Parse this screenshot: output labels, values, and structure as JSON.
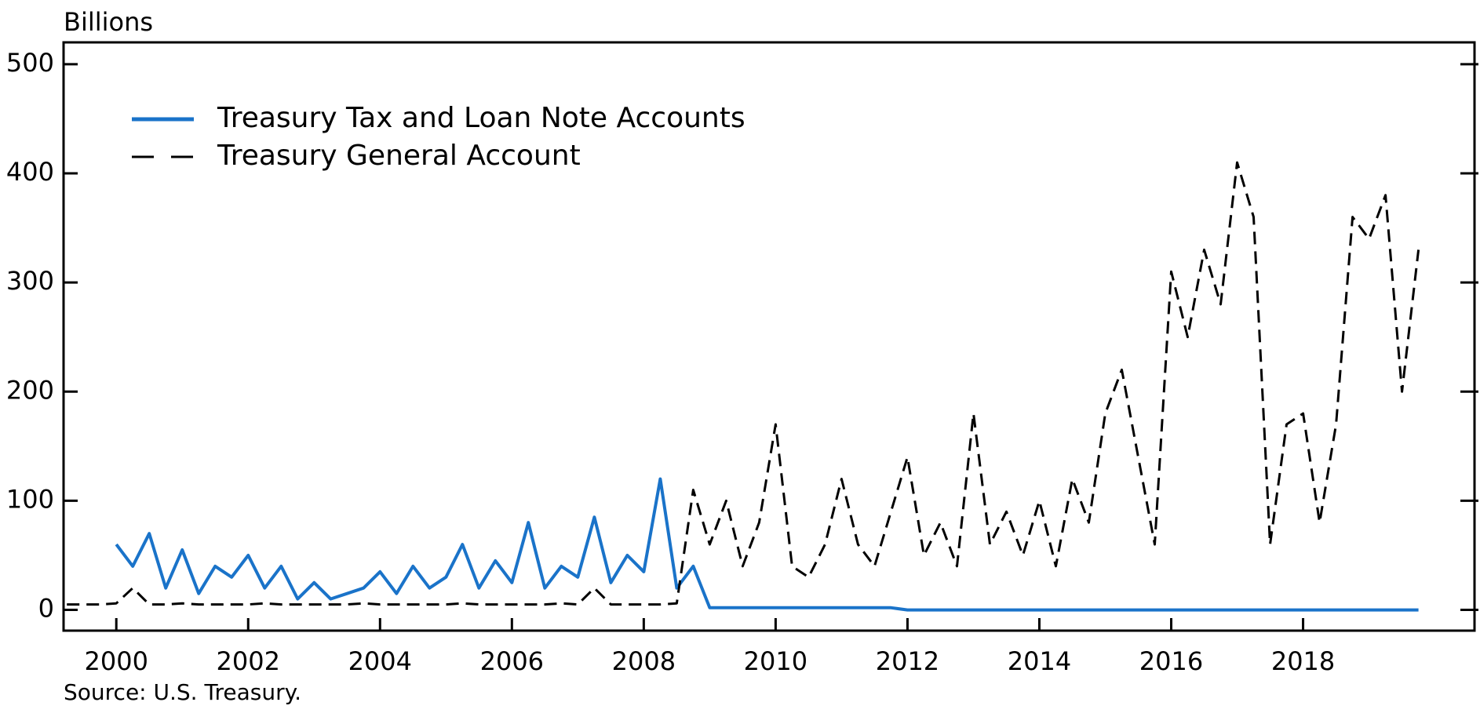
{
  "chart_data": {
    "type": "line",
    "y_label": "Billions",
    "source": "Source: U.S. Treasury.",
    "legend": "upper left",
    "grid": false,
    "xlim": [
      1999.2,
      2020.6
    ],
    "ylim": [
      -19,
      520
    ],
    "xticks": [
      2000,
      2002,
      2004,
      2006,
      2008,
      2010,
      2012,
      2014,
      2016,
      2018
    ],
    "yticks": [
      0,
      100,
      200,
      300,
      400,
      500
    ],
    "x": [
      1999.25,
      1999.5,
      1999.75,
      2000,
      2000.25,
      2000.5,
      2000.75,
      2001,
      2001.25,
      2001.5,
      2001.75,
      2002,
      2002.25,
      2002.5,
      2002.75,
      2003,
      2003.25,
      2003.5,
      2003.75,
      2004,
      2004.25,
      2004.5,
      2004.75,
      2005,
      2005.25,
      2005.5,
      2005.75,
      2006,
      2006.25,
      2006.5,
      2006.75,
      2007,
      2007.25,
      2007.5,
      2007.75,
      2008,
      2008.25,
      2008.5,
      2008.75,
      2009,
      2009.25,
      2009.5,
      2009.75,
      2010,
      2010.25,
      2010.5,
      2010.75,
      2011,
      2011.25,
      2011.5,
      2011.75,
      2012,
      2012.25,
      2012.5,
      2012.75,
      2013,
      2013.25,
      2013.5,
      2013.75,
      2014,
      2014.25,
      2014.5,
      2014.75,
      2015,
      2015.25,
      2015.5,
      2015.75,
      2016,
      2016.25,
      2016.5,
      2016.75,
      2017,
      2017.25,
      2017.5,
      2017.75,
      2018,
      2018.25,
      2018.5,
      2018.75,
      2019,
      2019.25,
      2019.5,
      2019.75
    ],
    "series": [
      {
        "name": "Treasury Tax and Loan Note Accounts",
        "color": "#1a73c9",
        "dashed": false,
        "values": [
          null,
          null,
          null,
          60,
          40,
          70,
          20,
          55,
          15,
          40,
          30,
          50,
          20,
          40,
          10,
          25,
          10,
          15,
          20,
          35,
          15,
          40,
          20,
          30,
          60,
          20,
          45,
          25,
          80,
          20,
          40,
          30,
          85,
          25,
          50,
          35,
          120,
          20,
          40,
          2,
          2,
          2,
          2,
          2,
          2,
          2,
          2,
          2,
          2,
          2,
          2,
          0,
          0,
          0,
          0,
          0,
          0,
          0,
          0,
          0,
          0,
          0,
          0,
          0,
          0,
          0,
          0,
          0,
          0,
          0,
          0,
          0,
          0,
          0,
          0,
          0,
          0,
          0,
          0,
          0,
          0,
          0,
          0
        ]
      },
      {
        "name": "Treasury General Account",
        "color": "#000000",
        "dashed": true,
        "values": [
          5,
          5,
          5,
          6,
          20,
          5,
          5,
          6,
          5,
          5,
          5,
          5,
          6,
          5,
          5,
          5,
          5,
          5,
          6,
          5,
          5,
          5,
          5,
          5,
          6,
          5,
          5,
          5,
          5,
          5,
          6,
          5,
          20,
          5,
          5,
          5,
          5,
          6,
          110,
          60,
          100,
          40,
          80,
          170,
          40,
          30,
          60,
          120,
          60,
          40,
          90,
          140,
          50,
          80,
          40,
          180,
          60,
          90,
          50,
          100,
          40,
          120,
          80,
          180,
          220,
          140,
          60,
          310,
          250,
          330,
          280,
          410,
          360,
          60,
          170,
          180,
          80,
          170,
          360,
          340,
          380,
          200,
          330
        ]
      }
    ]
  }
}
